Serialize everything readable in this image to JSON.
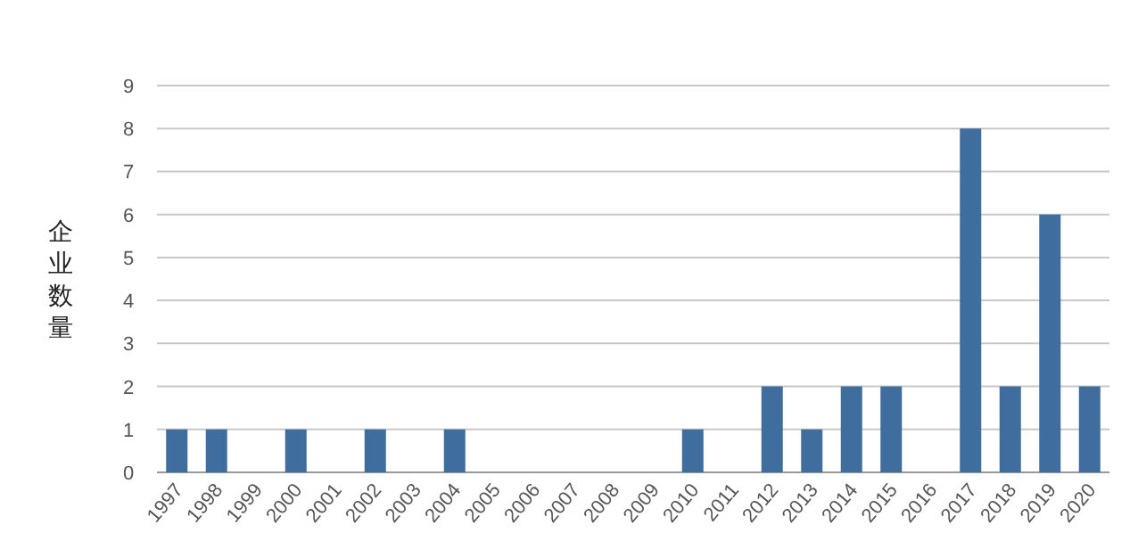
{
  "chart_data": {
    "type": "bar",
    "ylabel": "企业数量",
    "categories": [
      "1997",
      "1998",
      "1999",
      "2000",
      "2001",
      "2002",
      "2003",
      "2004",
      "2005",
      "2006",
      "2007",
      "2008",
      "2009",
      "2010",
      "2011",
      "2012",
      "2013",
      "2014",
      "2015",
      "2016",
      "2017",
      "2018",
      "2019",
      "2020"
    ],
    "series": [
      {
        "color": "#3f6e9e",
        "values": [
          1,
          1,
          0,
          1,
          0,
          1,
          0,
          1,
          0,
          0,
          0,
          0,
          0,
          1,
          0,
          2,
          1,
          2,
          2,
          0,
          8,
          2,
          6,
          2
        ]
      }
    ],
    "ylim": [
      0,
      9
    ],
    "yticks": [
      0,
      1,
      2,
      3,
      4,
      5,
      6,
      7,
      8,
      9
    ],
    "grid": "y"
  }
}
